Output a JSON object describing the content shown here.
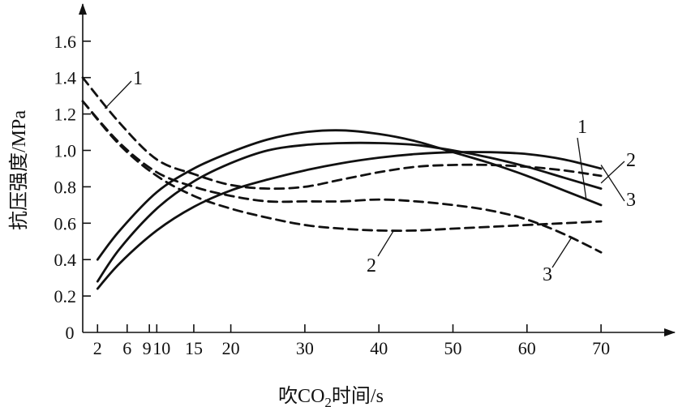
{
  "chart_data": {
    "type": "line",
    "xlabel": "吹CO",
    "xlabel_sub": "2",
    "xlabel_suffix": "时间/s",
    "ylabel": "抗压强度/MPa",
    "xlim": [
      0,
      80
    ],
    "ylim": [
      0,
      1.75
    ],
    "x_ticks": [
      2,
      6,
      9,
      10,
      15,
      20,
      30,
      40,
      50,
      60,
      70
    ],
    "y_ticks": [
      0.2,
      0.4,
      0.6,
      0.8,
      1.0,
      1.2,
      1.4,
      1.6
    ],
    "y_tick_labels": [
      "0.2",
      "0.4",
      "0.6",
      "0.8",
      "1.0",
      "1.2",
      "1.4",
      "1.6"
    ],
    "origin_label": "0",
    "series": [
      {
        "name": "1",
        "style": "solid",
        "x": [
          2,
          5,
          10,
          15,
          20,
          25,
          30,
          35,
          40,
          45,
          50,
          55,
          60,
          65,
          70
        ],
        "y": [
          0.4,
          0.56,
          0.77,
          0.9,
          0.99,
          1.06,
          1.1,
          1.11,
          1.09,
          1.05,
          0.99,
          0.93,
          0.86,
          0.78,
          0.7
        ]
      },
      {
        "name": "2",
        "style": "solid",
        "x": [
          2,
          5,
          10,
          15,
          20,
          25,
          30,
          35,
          40,
          45,
          50,
          55,
          60,
          65,
          70
        ],
        "y": [
          0.28,
          0.46,
          0.68,
          0.83,
          0.93,
          1.0,
          1.03,
          1.04,
          1.04,
          1.03,
          1.0,
          0.96,
          0.91,
          0.85,
          0.79
        ]
      },
      {
        "name": "3",
        "style": "solid",
        "x": [
          2,
          5,
          10,
          15,
          20,
          25,
          30,
          35,
          40,
          45,
          50,
          55,
          60,
          65,
          70
        ],
        "y": [
          0.24,
          0.38,
          0.56,
          0.69,
          0.78,
          0.84,
          0.89,
          0.93,
          0.96,
          0.98,
          0.99,
          0.99,
          0.98,
          0.95,
          0.9
        ]
      },
      {
        "name": "1",
        "style": "dashed",
        "x": [
          0,
          5,
          10,
          15,
          20,
          25,
          30,
          35,
          40,
          45,
          50,
          55,
          60,
          65,
          70
        ],
        "y": [
          1.4,
          1.15,
          0.95,
          0.87,
          0.81,
          0.79,
          0.8,
          0.84,
          0.88,
          0.91,
          0.92,
          0.92,
          0.91,
          0.89,
          0.86
        ]
      },
      {
        "name": "2",
        "style": "dashed",
        "x": [
          0,
          5,
          10,
          15,
          20,
          25,
          30,
          35,
          40,
          45,
          50,
          55,
          60,
          65,
          70
        ],
        "y": [
          1.27,
          1.03,
          0.86,
          0.75,
          0.68,
          0.63,
          0.59,
          0.57,
          0.56,
          0.56,
          0.57,
          0.58,
          0.59,
          0.6,
          0.61
        ]
      },
      {
        "name": "3",
        "style": "dashed",
        "x": [
          0,
          5,
          10,
          15,
          20,
          25,
          30,
          35,
          40,
          45,
          50,
          55,
          60,
          65,
          70
        ],
        "y": [
          1.27,
          1.04,
          0.88,
          0.8,
          0.75,
          0.72,
          0.72,
          0.72,
          0.73,
          0.72,
          0.7,
          0.67,
          0.62,
          0.54,
          0.44
        ]
      }
    ]
  }
}
